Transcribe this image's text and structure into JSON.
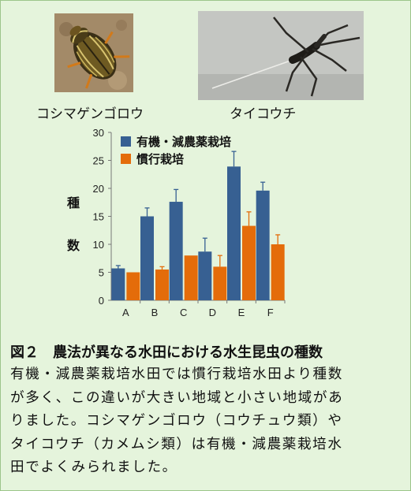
{
  "photos": {
    "left_caption": "コシマゲンゴロウ",
    "right_caption": "タイコウチ"
  },
  "chart_data": {
    "type": "bar",
    "categories": [
      "A",
      "B",
      "C",
      "D",
      "E",
      "F"
    ],
    "series": [
      {
        "name": "有機・減農薬栽培",
        "color": "#376092",
        "values": [
          5.7,
          15.0,
          17.6,
          8.7,
          23.9,
          19.6
        ],
        "errors": [
          0.5,
          1.5,
          2.2,
          2.4,
          2.7,
          1.5
        ]
      },
      {
        "name": "慣行栽培",
        "color": "#e46c0a",
        "values": [
          5.0,
          5.5,
          8.0,
          6.0,
          13.3,
          10.0
        ],
        "errors": [
          0.0,
          0.5,
          0.0,
          2.0,
          2.5,
          1.7
        ]
      }
    ],
    "ylim": [
      0,
      30
    ],
    "yticks": [
      0,
      5,
      10,
      15,
      20,
      25,
      30
    ],
    "ylabel": "種数",
    "ylabel_chars": [
      "種",
      "数"
    ],
    "legend_position": "top-left",
    "grid": false
  },
  "figure": {
    "number": "図２",
    "title": "農法が異なる水田における水生昆虫の種数"
  },
  "body_lines": [
    "有機・減農薬栽培水田では慣行栽培水田より種数",
    "が多く、この違いが大きい地域と小さい地域があ",
    "りました。コシマゲンゴロウ（コウチュウ類）や",
    "タイコウチ（カメムシ類）は有機・減農薬栽培水",
    "田でよくみられました。"
  ]
}
